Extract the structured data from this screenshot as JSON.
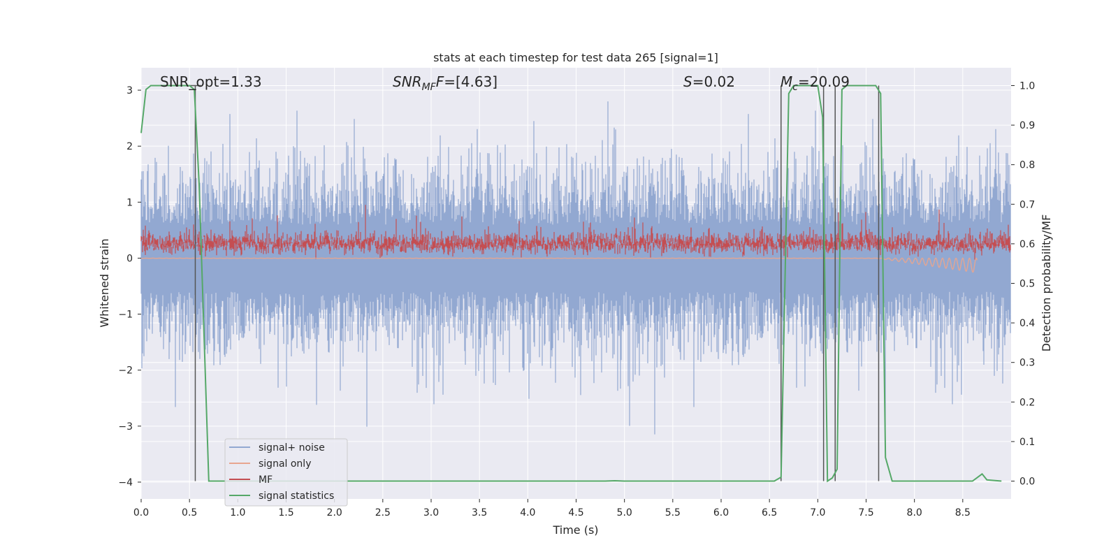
{
  "chart_data": {
    "type": "line",
    "title": "stats at each timestep for test data 265 [signal=1]",
    "xlabel": "Time (s)",
    "ylabel": "Whitened strain",
    "ylabel_right": "Detection probability/MF",
    "xlim": [
      0.0,
      9.0
    ],
    "ylim": [
      -4.3,
      3.4
    ],
    "ylim_right": [
      -0.045,
      1.045
    ],
    "x_ticks": [
      "0.0",
      "0.5",
      "1.0",
      "1.5",
      "2.0",
      "2.5",
      "3.0",
      "3.5",
      "4.0",
      "4.5",
      "5.0",
      "5.5",
      "6.0",
      "6.5",
      "7.0",
      "7.5",
      "8.0",
      "8.5"
    ],
    "y_ticks": [
      "3",
      "2",
      "1",
      "0",
      "−1",
      "−2",
      "−3",
      "−4"
    ],
    "y_ticks_right": [
      "1.0",
      "0.9",
      "0.8",
      "0.7",
      "0.6",
      "0.5",
      "0.4",
      "0.3",
      "0.2",
      "0.1",
      "0.0"
    ],
    "grid": true,
    "legend_position": "lower-left",
    "annotations": {
      "snr_opt": "SNR_opt=1.33",
      "snr_mf_pre": "SNR",
      "snr_mf_sub": "MF",
      "snr_mf_post": "=[4.63]",
      "s_pre": "S",
      "s_post": "=0.02",
      "mc_pre": "M",
      "mc_sub": "c",
      "mc_post": "=20.09"
    },
    "series": [
      {
        "name": "signal+ noise",
        "color": "#92a8d1",
        "style": "noise",
        "amplitude_envelope": [
          -2.6,
          2.8
        ]
      },
      {
        "name": "signal only",
        "color": "#e8a58f",
        "style": "chirp",
        "x_end": 8.65
      },
      {
        "name": "MF",
        "color": "#c44e52",
        "style": "noise",
        "amplitude_envelope": [
          0.0,
          0.9
        ]
      },
      {
        "name": "signal statistics",
        "color": "#55a868",
        "axis": "right",
        "x": [
          0.0,
          0.05,
          0.1,
          0.5,
          0.55,
          0.6,
          0.7,
          4.8,
          4.9,
          5.0,
          6.55,
          6.62,
          6.7,
          6.75,
          7.0,
          7.05,
          7.1,
          7.15,
          7.2,
          7.25,
          7.3,
          7.6,
          7.65,
          7.7,
          7.77,
          8.6,
          8.7,
          8.75,
          8.9
        ],
        "y": [
          0.88,
          0.99,
          1.0,
          1.0,
          0.99,
          0.75,
          0.0,
          0.0,
          0.001,
          0.0,
          0.0,
          0.01,
          0.98,
          1.0,
          1.0,
          0.92,
          0.0,
          0.008,
          0.03,
          0.99,
          1.0,
          1.0,
          0.98,
          0.06,
          0.0,
          0.0,
          0.018,
          0.003,
          0.0
        ]
      }
    ],
    "vertical_markers_x": [
      0.56,
      6.62,
      7.06,
      7.18,
      7.63
    ]
  }
}
